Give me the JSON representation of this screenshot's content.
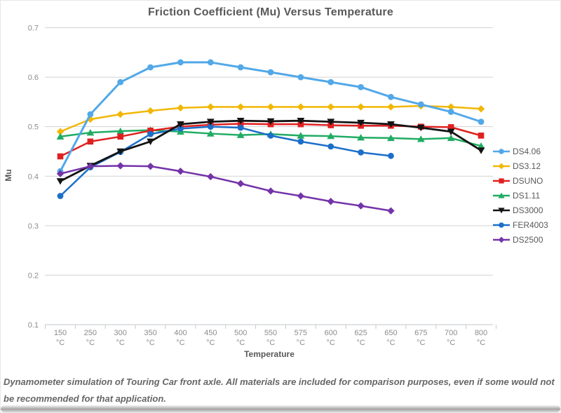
{
  "page": {
    "title": "Friction Coefficient (Mu) Versus Temperature",
    "footnote": "Dynamometer simulation of Touring Car front axle. All materials are included for comparison purposes, even if some would not be recommended for that application."
  },
  "chart_data": {
    "type": "line",
    "title": "Friction Coefficient (Mu) Versus Temperature",
    "xlabel": "Temperature",
    "ylabel": "Mu",
    "ylim": [
      0.1,
      0.7
    ],
    "ytick_step": 0.1,
    "grid": "horizontal",
    "legend_position": "right",
    "x_tick_unit": "°C",
    "categories": [
      "150",
      "250",
      "300",
      "350",
      "400",
      "450",
      "500",
      "550",
      "575",
      "600",
      "625",
      "650",
      "675",
      "700",
      "800"
    ],
    "series": [
      {
        "name": "DS4.06",
        "color": "#52A8E8",
        "marker": "circle",
        "line_width": 3,
        "values": [
          0.41,
          0.525,
          0.59,
          0.62,
          0.63,
          0.63,
          0.62,
          0.61,
          0.6,
          0.59,
          0.58,
          0.56,
          0.545,
          0.53,
          0.51
        ]
      },
      {
        "name": "DS3.12",
        "color": "#F2B705",
        "marker": "diamond",
        "line_width": 2.5,
        "values": [
          0.49,
          0.515,
          0.525,
          0.532,
          0.538,
          0.54,
          0.54,
          0.54,
          0.54,
          0.54,
          0.54,
          0.54,
          0.542,
          0.54,
          0.536
        ]
      },
      {
        "name": "DSUNO",
        "color": "#E02020",
        "marker": "square",
        "line_width": 2.5,
        "values": [
          0.44,
          0.47,
          0.48,
          0.492,
          0.5,
          0.504,
          0.506,
          0.505,
          0.505,
          0.503,
          0.502,
          0.502,
          0.5,
          0.499,
          0.482
        ]
      },
      {
        "name": "DS1.11",
        "color": "#21AC64",
        "marker": "triangle-up",
        "line_width": 2.5,
        "values": [
          0.48,
          0.488,
          0.491,
          0.493,
          0.49,
          0.486,
          0.483,
          0.485,
          0.482,
          0.481,
          0.478,
          0.477,
          0.475,
          0.477,
          0.461
        ]
      },
      {
        "name": "DS3000",
        "color": "#141414",
        "marker": "triangle-down",
        "line_width": 2.8,
        "values": [
          0.39,
          0.421,
          0.45,
          0.47,
          0.505,
          0.51,
          0.512,
          0.511,
          0.512,
          0.51,
          0.508,
          0.505,
          0.498,
          0.49,
          0.452
        ]
      },
      {
        "name": "FER4003",
        "color": "#1C6FC9",
        "marker": "circle",
        "line_width": 2.5,
        "values": [
          0.36,
          0.418,
          0.449,
          0.485,
          0.496,
          0.5,
          0.498,
          0.482,
          0.47,
          0.46,
          0.448,
          0.441,
          null,
          null,
          null
        ]
      },
      {
        "name": "DS2500",
        "color": "#7434A8",
        "marker": "diamond",
        "line_width": 2.5,
        "values": [
          0.405,
          0.42,
          0.421,
          0.42,
          0.41,
          0.399,
          0.385,
          0.37,
          0.36,
          0.349,
          0.34,
          0.33,
          null,
          null,
          null
        ]
      }
    ]
  }
}
